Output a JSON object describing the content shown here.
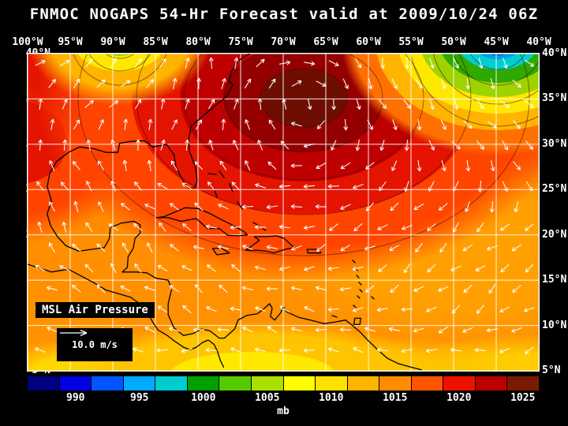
{
  "title": "FNMOC NOGAPS 54-Hr Forecast valid at 2009/10/24 06Z",
  "axes": {
    "lon_labels": [
      "100°W",
      "95°W",
      "90°W",
      "85°W",
      "80°W",
      "75°W",
      "70°W",
      "65°W",
      "60°W",
      "55°W",
      "50°W",
      "45°W",
      "40°W"
    ],
    "lat_labels": [
      "40°N",
      "35°N",
      "30°N",
      "25°N",
      "20°N",
      "15°N",
      "10°N",
      "5°N"
    ]
  },
  "map": {
    "field_label": "MSL Air Pressure",
    "wind_legend": "10.0 m/s"
  },
  "colorbar": {
    "unit": "mb",
    "tick_labels": [
      "990",
      "995",
      "1000",
      "1005",
      "1010",
      "1015",
      "1020",
      "1025"
    ],
    "colors": [
      "#000080",
      "#0000E0",
      "#0055FF",
      "#00AAFF",
      "#00CCCC",
      "#00A000",
      "#55CC00",
      "#AAE000",
      "#FFFF00",
      "#FFE000",
      "#FFB400",
      "#FF8C00",
      "#FF5500",
      "#EE1100",
      "#BB0000",
      "#7A1A00"
    ]
  }
}
